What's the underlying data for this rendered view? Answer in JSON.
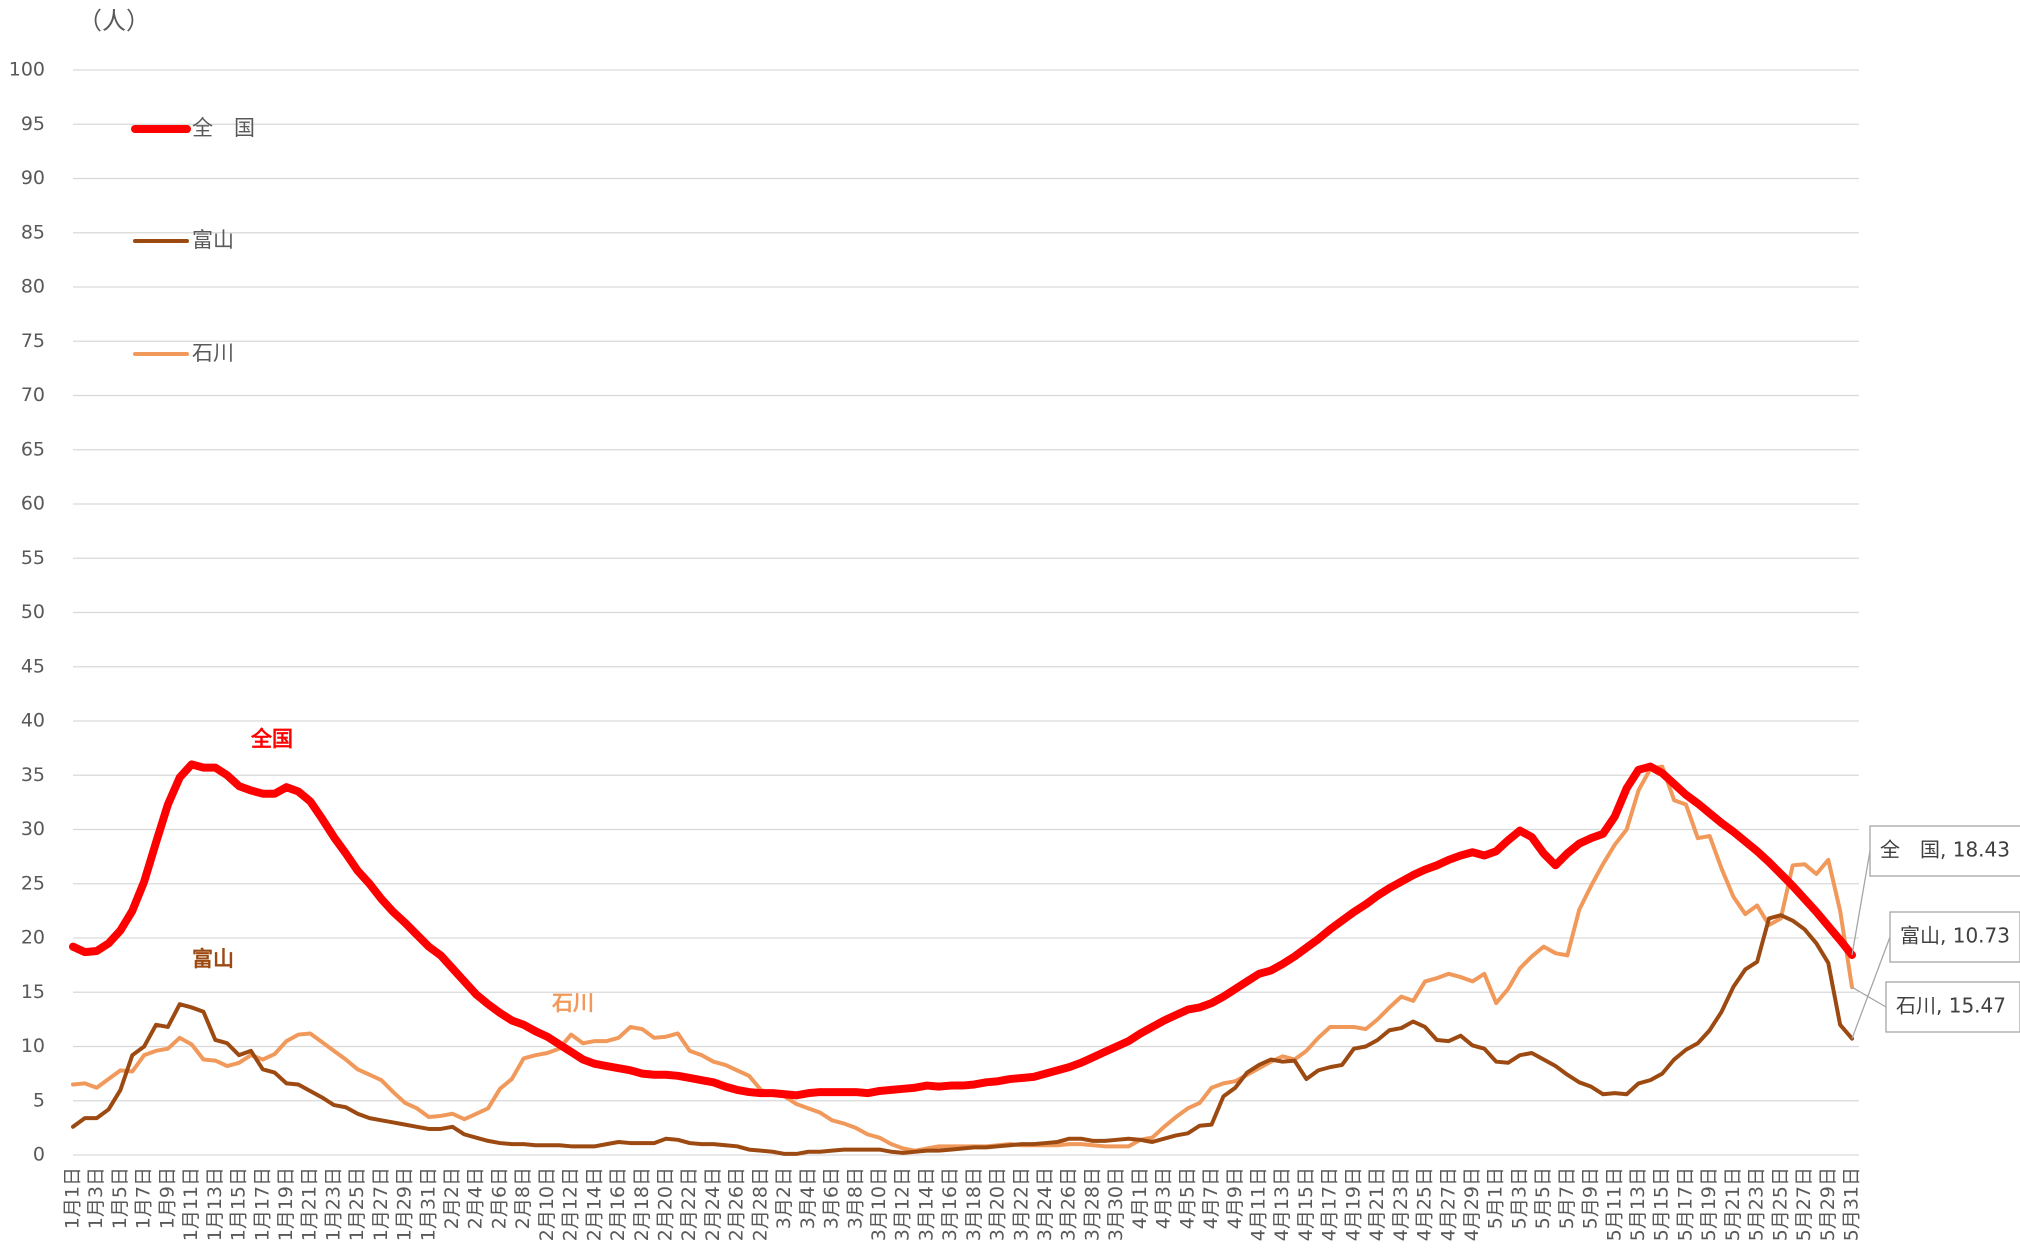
{
  "chart_data": {
    "type": "line",
    "y_unit": "（人）",
    "ylim": [
      0,
      100
    ],
    "yticks": [
      0,
      5,
      10,
      15,
      20,
      25,
      30,
      35,
      40,
      45,
      50,
      55,
      60,
      65,
      70,
      75,
      80,
      85,
      90,
      95,
      100
    ],
    "grid": true,
    "categories": [
      "1月1日",
      null,
      "1月3日",
      null,
      "1月5日",
      null,
      "1月7日",
      null,
      "1月9日",
      null,
      "1月11日",
      null,
      "1月13日",
      null,
      "1月15日",
      null,
      "1月17日",
      null,
      "1月19日",
      null,
      "1月21日",
      null,
      "1月23日",
      null,
      "1月25日",
      null,
      "1月27日",
      null,
      "1月29日",
      null,
      "1月31日",
      null,
      "2月2日",
      null,
      "2月4日",
      null,
      "2月6日",
      null,
      "2月8日",
      null,
      "2月10日",
      null,
      "2月12日",
      null,
      "2月14日",
      null,
      "2月16日",
      null,
      "2月18日",
      null,
      "2月20日",
      null,
      "2月22日",
      null,
      "2月24日",
      null,
      "2月26日",
      null,
      "2月28日",
      null,
      "3月2日",
      null,
      "3月4日",
      null,
      "3月6日",
      null,
      "3月8日",
      null,
      "3月10日",
      null,
      "3月12日",
      null,
      "3月14日",
      null,
      "3月16日",
      null,
      "3月18日",
      null,
      "3月20日",
      null,
      "3月22日",
      null,
      "3月24日",
      null,
      "3月26日",
      null,
      "3月28日",
      null,
      "3月30日",
      null,
      "4月1日",
      null,
      "4月3日",
      null,
      "4月5日",
      null,
      "4月7日",
      null,
      "4月9日",
      null,
      "4月11日",
      null,
      "4月13日",
      null,
      "4月15日",
      null,
      "4月17日",
      null,
      "4月19日",
      null,
      "4月21日",
      null,
      "4月23日",
      null,
      "4月25日",
      null,
      "4月27日",
      null,
      "4月29日",
      null,
      "5月1日",
      null,
      "5月3日",
      null,
      "5月5日",
      null,
      "5月7日",
      null,
      "5月9日",
      null,
      "5月11日",
      null,
      "5月13日",
      null,
      "5月15日",
      null,
      "5月17日",
      null,
      "5月19日",
      null,
      "5月21日",
      null,
      "5月23日",
      null,
      "5月25日",
      null,
      "5月27日",
      null,
      "5月29日",
      null,
      "5月31日"
    ],
    "series": [
      {
        "name": "全　国",
        "color": "#ff0000",
        "inline_label": "全国",
        "end_label": "全　国, 18.43",
        "values": [
          19.2,
          18.7,
          18.8,
          19.5,
          20.7,
          22.5,
          25.2,
          28.8,
          32.3,
          34.8,
          36.0,
          35.7,
          35.7,
          35.0,
          34.0,
          33.6,
          33.3,
          33.3,
          33.9,
          33.5,
          32.6,
          31.0,
          29.3,
          27.8,
          26.2,
          25.0,
          23.6,
          22.4,
          21.4,
          20.3,
          19.2,
          18.4,
          17.2,
          16.0,
          14.8,
          13.9,
          13.1,
          12.4,
          12.0,
          11.4,
          10.9,
          10.2,
          9.5,
          8.8,
          8.4,
          8.2,
          8.0,
          7.8,
          7.5,
          7.4,
          7.4,
          7.3,
          7.1,
          6.9,
          6.7,
          6.3,
          6.0,
          5.8,
          5.7,
          5.7,
          5.6,
          5.5,
          5.7,
          5.8,
          5.8,
          5.8,
          5.8,
          5.7,
          5.9,
          6.0,
          6.1,
          6.2,
          6.4,
          6.3,
          6.4,
          6.4,
          6.5,
          6.7,
          6.8,
          7.0,
          7.1,
          7.2,
          7.5,
          7.8,
          8.1,
          8.5,
          9.0,
          9.5,
          10.0,
          10.5,
          11.2,
          11.8,
          12.4,
          12.9,
          13.4,
          13.6,
          14.0,
          14.6,
          15.3,
          16.0,
          16.7,
          17.0,
          17.6,
          18.3,
          19.1,
          19.9,
          20.8,
          21.6,
          22.4,
          23.1,
          23.9,
          24.6,
          25.2,
          25.8,
          26.3,
          26.7,
          27.2,
          27.6,
          27.9,
          27.6,
          28.0,
          29.0,
          29.9,
          29.3,
          27.8,
          26.7,
          27.8,
          28.7,
          29.2,
          29.6,
          31.2,
          33.8,
          35.5,
          35.8,
          35.2,
          34.2,
          33.2,
          32.4,
          31.5,
          30.6,
          29.8,
          28.9,
          28.0,
          27.0,
          25.9,
          24.8,
          23.6,
          22.4,
          21.1,
          19.8,
          18.43
        ]
      },
      {
        "name": "富山",
        "color": "#9c4a12",
        "inline_label": "富山",
        "end_label": "富山, 10.73",
        "values": [
          2.6,
          3.4,
          3.4,
          4.2,
          6.0,
          9.2,
          10.0,
          12.0,
          11.8,
          13.9,
          13.6,
          13.2,
          10.6,
          10.3,
          9.2,
          9.6,
          7.9,
          7.6,
          6.6,
          6.5,
          5.9,
          5.3,
          4.6,
          4.4,
          3.8,
          3.4,
          3.2,
          3.0,
          2.8,
          2.6,
          2.4,
          2.4,
          2.6,
          1.9,
          1.6,
          1.3,
          1.1,
          1.0,
          1.0,
          0.9,
          0.9,
          0.9,
          0.8,
          0.8,
          0.8,
          1.0,
          1.2,
          1.1,
          1.1,
          1.1,
          1.5,
          1.4,
          1.1,
          1.0,
          1.0,
          0.9,
          0.8,
          0.5,
          0.4,
          0.3,
          0.1,
          0.1,
          0.3,
          0.3,
          0.4,
          0.5,
          0.5,
          0.5,
          0.5,
          0.3,
          0.2,
          0.3,
          0.4,
          0.4,
          0.5,
          0.6,
          0.7,
          0.7,
          0.8,
          0.9,
          1.0,
          1.0,
          1.1,
          1.2,
          1.5,
          1.5,
          1.3,
          1.3,
          1.4,
          1.5,
          1.4,
          1.2,
          1.5,
          1.8,
          2.0,
          2.7,
          2.8,
          5.4,
          6.2,
          7.6,
          8.3,
          8.8,
          8.6,
          8.7,
          7.0,
          7.8,
          8.1,
          8.3,
          9.8,
          10.0,
          10.6,
          11.5,
          11.7,
          12.3,
          11.8,
          10.6,
          10.5,
          11.0,
          10.1,
          9.8,
          8.6,
          8.5,
          9.2,
          9.4,
          8.8,
          8.2,
          7.4,
          6.7,
          6.3,
          5.6,
          5.7,
          5.6,
          6.6,
          6.9,
          7.5,
          8.8,
          9.7,
          10.3,
          11.5,
          13.2,
          15.5,
          17.1,
          17.8,
          21.8,
          22.1,
          21.6,
          20.8,
          19.5,
          17.7,
          12.0,
          10.73
        ]
      },
      {
        "name": "石川",
        "color": "#f1995a",
        "inline_label": "石川",
        "end_label": "石川, 15.47",
        "values": [
          6.5,
          6.6,
          6.2,
          7.0,
          7.8,
          7.7,
          9.2,
          9.6,
          9.8,
          10.8,
          10.2,
          8.8,
          8.7,
          8.2,
          8.5,
          9.2,
          8.8,
          9.3,
          10.5,
          11.1,
          11.2,
          10.4,
          9.6,
          8.8,
          7.9,
          7.4,
          6.9,
          5.8,
          4.8,
          4.3,
          3.5,
          3.6,
          3.8,
          3.3,
          3.8,
          4.3,
          6.1,
          7.0,
          8.9,
          9.2,
          9.4,
          9.8,
          11.1,
          10.3,
          10.5,
          10.5,
          10.8,
          11.8,
          11.6,
          10.8,
          10.9,
          11.2,
          9.6,
          9.2,
          8.6,
          8.3,
          7.8,
          7.3,
          6.0,
          5.6,
          5.4,
          4.7,
          4.3,
          3.9,
          3.2,
          2.9,
          2.5,
          1.9,
          1.6,
          1.0,
          0.6,
          0.4,
          0.6,
          0.8,
          0.8,
          0.8,
          0.8,
          0.8,
          0.9,
          1.0,
          0.9,
          0.9,
          0.9,
          0.9,
          1.0,
          1.0,
          0.9,
          0.8,
          0.8,
          0.8,
          1.4,
          1.6,
          2.6,
          3.5,
          4.3,
          4.8,
          6.2,
          6.6,
          6.8,
          7.4,
          8.0,
          8.6,
          9.1,
          8.8,
          9.6,
          10.8,
          11.8,
          11.8,
          11.8,
          11.6,
          12.5,
          13.6,
          14.6,
          14.2,
          16.0,
          16.3,
          16.7,
          16.4,
          16.0,
          16.7,
          14.0,
          15.3,
          17.2,
          18.3,
          19.2,
          18.6,
          18.4,
          22.6,
          24.8,
          26.8,
          28.6,
          30.0,
          33.6,
          35.6,
          35.8,
          32.7,
          32.3,
          29.2,
          29.4,
          26.4,
          23.8,
          22.2,
          23.0,
          21.2,
          21.8,
          26.7,
          26.8,
          25.9,
          27.2,
          22.5,
          15.47
        ]
      }
    ]
  }
}
